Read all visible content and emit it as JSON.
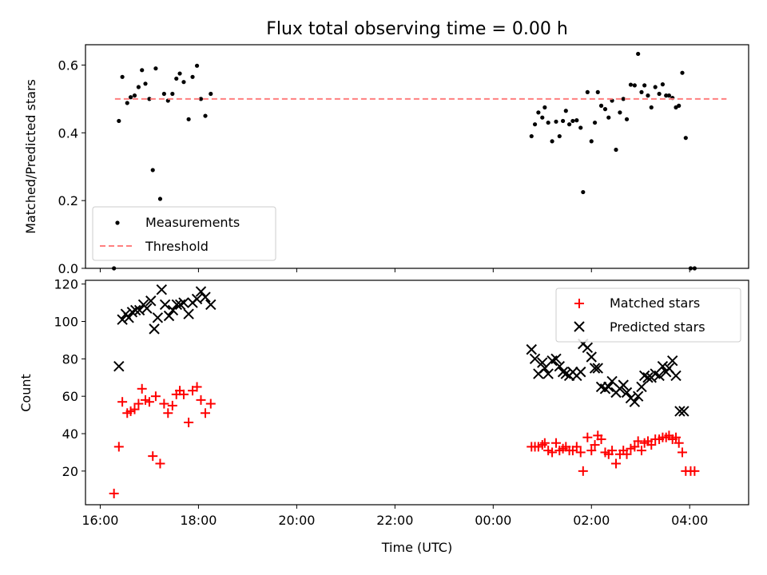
{
  "chart_data": [
    {
      "type": "scatter",
      "title": "Flux total observing time = 0.00 h",
      "ylabel": "Matched/Predicted stars",
      "xlabel": "",
      "ylim": [
        0,
        0.66
      ],
      "yticks": [
        0.0,
        0.2,
        0.4,
        0.6
      ],
      "ytick_labels": [
        "0.0",
        "0.2",
        "0.4",
        "0.6"
      ],
      "legend_position": "lower-left",
      "series": [
        {
          "name": "Measurements",
          "marker": "dot",
          "color": "#000000",
          "points": [
            [
              16.28,
              0.0
            ],
            [
              16.38,
              0.435
            ],
            [
              16.45,
              0.565
            ],
            [
              16.55,
              0.488
            ],
            [
              16.62,
              0.505
            ],
            [
              16.7,
              0.51
            ],
            [
              16.78,
              0.535
            ],
            [
              16.85,
              0.585
            ],
            [
              16.92,
              0.545
            ],
            [
              17.0,
              0.5
            ],
            [
              17.07,
              0.29
            ],
            [
              17.13,
              0.59
            ],
            [
              17.22,
              0.205
            ],
            [
              17.3,
              0.515
            ],
            [
              17.38,
              0.495
            ],
            [
              17.47,
              0.515
            ],
            [
              17.55,
              0.56
            ],
            [
              17.62,
              0.575
            ],
            [
              17.7,
              0.55
            ],
            [
              17.8,
              0.44
            ],
            [
              17.88,
              0.565
            ],
            [
              17.97,
              0.598
            ],
            [
              18.05,
              0.5
            ],
            [
              18.14,
              0.45
            ],
            [
              18.25,
              0.515
            ],
            [
              0.78,
              0.39
            ],
            [
              0.85,
              0.425
            ],
            [
              0.92,
              0.46
            ],
            [
              1.0,
              0.445
            ],
            [
              1.05,
              0.475
            ],
            [
              1.12,
              0.43
            ],
            [
              1.2,
              0.375
            ],
            [
              1.28,
              0.433
            ],
            [
              1.35,
              0.39
            ],
            [
              1.42,
              0.435
            ],
            [
              1.48,
              0.465
            ],
            [
              1.55,
              0.425
            ],
            [
              1.62,
              0.435
            ],
            [
              1.7,
              0.437
            ],
            [
              1.78,
              0.415
            ],
            [
              1.83,
              0.225
            ],
            [
              1.92,
              0.52
            ],
            [
              2.0,
              0.375
            ],
            [
              2.07,
              0.43
            ],
            [
              2.13,
              0.52
            ],
            [
              2.2,
              0.48
            ],
            [
              2.28,
              0.47
            ],
            [
              2.35,
              0.445
            ],
            [
              2.42,
              0.495
            ],
            [
              2.5,
              0.35
            ],
            [
              2.58,
              0.46
            ],
            [
              2.65,
              0.5
            ],
            [
              2.72,
              0.44
            ],
            [
              2.8,
              0.542
            ],
            [
              2.88,
              0.54
            ],
            [
              2.95,
              0.633
            ],
            [
              3.02,
              0.52
            ],
            [
              3.08,
              0.54
            ],
            [
              3.15,
              0.51
            ],
            [
              3.22,
              0.475
            ],
            [
              3.3,
              0.535
            ],
            [
              3.38,
              0.515
            ],
            [
              3.45,
              0.543
            ],
            [
              3.52,
              0.51
            ],
            [
              3.58,
              0.51
            ],
            [
              3.65,
              0.503
            ],
            [
              3.72,
              0.475
            ],
            [
              3.78,
              0.48
            ],
            [
              3.85,
              0.577
            ],
            [
              3.92,
              0.385
            ],
            [
              4.02,
              0.0
            ],
            [
              4.1,
              0.0
            ]
          ]
        },
        {
          "name": "Threshold",
          "marker": "dashed-line",
          "color": "#ff7f7f",
          "value": 0.5,
          "x_range": [
            16.3,
            4.75
          ]
        }
      ]
    },
    {
      "type": "scatter",
      "title": "",
      "ylabel": "Count",
      "xlabel": "Time (UTC)",
      "ylim": [
        2,
        122
      ],
      "yticks": [
        20,
        40,
        60,
        80,
        100,
        120
      ],
      "ytick_labels": [
        "20",
        "40",
        "60",
        "80",
        "100",
        "120"
      ],
      "xticks": [
        16,
        18,
        20,
        22,
        24,
        26,
        28
      ],
      "xtick_labels": [
        "16:00",
        "18:00",
        "20:00",
        "22:00",
        "00:00",
        "02:00",
        "04:00"
      ],
      "legend_position": "upper-right",
      "series": [
        {
          "name": "Matched stars",
          "marker": "plus",
          "color": "#ff0000",
          "points": [
            [
              16.28,
              8
            ],
            [
              16.38,
              33
            ],
            [
              16.45,
              57
            ],
            [
              16.55,
              51
            ],
            [
              16.62,
              52
            ],
            [
              16.7,
              53
            ],
            [
              16.78,
              56
            ],
            [
              16.85,
              64
            ],
            [
              16.92,
              58
            ],
            [
              17.0,
              57
            ],
            [
              17.07,
              28
            ],
            [
              17.13,
              60
            ],
            [
              17.22,
              24
            ],
            [
              17.3,
              56
            ],
            [
              17.38,
              51
            ],
            [
              17.47,
              55
            ],
            [
              17.55,
              61
            ],
            [
              17.62,
              63
            ],
            [
              17.7,
              61
            ],
            [
              17.8,
              46
            ],
            [
              17.88,
              63
            ],
            [
              17.97,
              65
            ],
            [
              18.05,
              58
            ],
            [
              18.14,
              51
            ],
            [
              18.25,
              56
            ],
            [
              0.78,
              33
            ],
            [
              0.85,
              33
            ],
            [
              0.92,
              33
            ],
            [
              1.0,
              34
            ],
            [
              1.05,
              35
            ],
            [
              1.12,
              31
            ],
            [
              1.2,
              30
            ],
            [
              1.28,
              35
            ],
            [
              1.35,
              31
            ],
            [
              1.42,
              32
            ],
            [
              1.48,
              33
            ],
            [
              1.55,
              31
            ],
            [
              1.62,
              31
            ],
            [
              1.7,
              33
            ],
            [
              1.78,
              30
            ],
            [
              1.83,
              20
            ],
            [
              1.92,
              38
            ],
            [
              2.0,
              31
            ],
            [
              2.07,
              34
            ],
            [
              2.13,
              39
            ],
            [
              2.2,
              37
            ],
            [
              2.28,
              30
            ],
            [
              2.35,
              29
            ],
            [
              2.42,
              31
            ],
            [
              2.5,
              24
            ],
            [
              2.58,
              29
            ],
            [
              2.65,
              31
            ],
            [
              2.72,
              29
            ],
            [
              2.8,
              32
            ],
            [
              2.88,
              33
            ],
            [
              2.95,
              36
            ],
            [
              3.02,
              31
            ],
            [
              3.08,
              35
            ],
            [
              3.15,
              36
            ],
            [
              3.22,
              34
            ],
            [
              3.3,
              37
            ],
            [
              3.38,
              37
            ],
            [
              3.45,
              38
            ],
            [
              3.52,
              38
            ],
            [
              3.58,
              39
            ],
            [
              3.65,
              37
            ],
            [
              3.72,
              38
            ],
            [
              3.78,
              35
            ],
            [
              3.85,
              30
            ],
            [
              3.92,
              20
            ],
            [
              4.02,
              20
            ],
            [
              4.1,
              20
            ]
          ]
        },
        {
          "name": "Predicted stars",
          "marker": "x",
          "color": "#000000",
          "points": [
            [
              16.38,
              76
            ],
            [
              16.45,
              101
            ],
            [
              16.52,
              104
            ],
            [
              16.58,
              102
            ],
            [
              16.65,
              105
            ],
            [
              16.72,
              106
            ],
            [
              16.8,
              106
            ],
            [
              16.88,
              109
            ],
            [
              16.95,
              107
            ],
            [
              17.03,
              111
            ],
            [
              17.1,
              96
            ],
            [
              17.17,
              102
            ],
            [
              17.25,
              117
            ],
            [
              17.32,
              109
            ],
            [
              17.4,
              103
            ],
            [
              17.48,
              106
            ],
            [
              17.56,
              109
            ],
            [
              17.63,
              109
            ],
            [
              17.7,
              110
            ],
            [
              17.8,
              104
            ],
            [
              17.88,
              110
            ],
            [
              17.97,
              112
            ],
            [
              18.05,
              116
            ],
            [
              18.14,
              113
            ],
            [
              18.25,
              109
            ],
            [
              0.78,
              85
            ],
            [
              0.85,
              80
            ],
            [
              0.92,
              72
            ],
            [
              1.0,
              78
            ],
            [
              1.05,
              75
            ],
            [
              1.12,
              72
            ],
            [
              1.2,
              79
            ],
            [
              1.28,
              80
            ],
            [
              1.35,
              76
            ],
            [
              1.42,
              73
            ],
            [
              1.48,
              72
            ],
            [
              1.55,
              71
            ],
            [
              1.62,
              73
            ],
            [
              1.7,
              71
            ],
            [
              1.78,
              73
            ],
            [
              1.83,
              88
            ],
            [
              1.92,
              86
            ],
            [
              2.0,
              81
            ],
            [
              2.07,
              75
            ],
            [
              2.13,
              75
            ],
            [
              2.2,
              65
            ],
            [
              2.28,
              64
            ],
            [
              2.35,
              65
            ],
            [
              2.42,
              68
            ],
            [
              2.5,
              62
            ],
            [
              2.58,
              64
            ],
            [
              2.65,
              66
            ],
            [
              2.72,
              62
            ],
            [
              2.8,
              59
            ],
            [
              2.88,
              57
            ],
            [
              2.95,
              60
            ],
            [
              3.02,
              65
            ],
            [
              3.08,
              71
            ],
            [
              3.15,
              70
            ],
            [
              3.22,
              70
            ],
            [
              3.3,
              72
            ],
            [
              3.38,
              71
            ],
            [
              3.45,
              76
            ],
            [
              3.52,
              73
            ],
            [
              3.58,
              75
            ],
            [
              3.65,
              79
            ],
            [
              3.72,
              71
            ],
            [
              3.8,
              52
            ],
            [
              3.88,
              52
            ]
          ]
        }
      ]
    }
  ]
}
